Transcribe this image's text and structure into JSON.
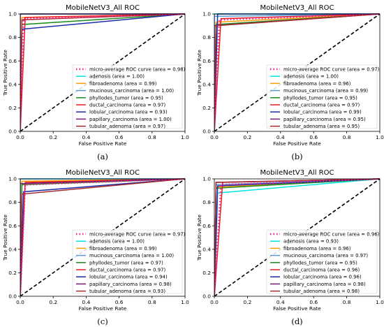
{
  "chart_data": [
    {
      "type": "line",
      "title": "MobileNetV3_All ROC",
      "xlabel": "False Positive Rate",
      "ylabel": "True Positive Rate",
      "xlim": [
        0,
        1
      ],
      "ylim": [
        0,
        1
      ],
      "xticks": [
        "0.0",
        "0.2",
        "0.4",
        "0.6",
        "0.8",
        "1.0"
      ],
      "yticks": [
        "0.0",
        "0.2",
        "0.4",
        "0.6",
        "0.8",
        "1.0"
      ],
      "legend_position": "lower-right",
      "caption": "(a)",
      "series": [
        {
          "name": "micro-average ROC curve (area = 0.98)",
          "color": "#ff1493",
          "dashed": true,
          "x": [
            0,
            0.02,
            1
          ],
          "y": [
            0,
            0.96,
            1
          ]
        },
        {
          "name": "adenosis (area = 1.00)",
          "color": "#00e5e5",
          "x": [
            0,
            0.0,
            1
          ],
          "y": [
            0,
            1.0,
            1
          ]
        },
        {
          "name": "fibroadenoma (area = 0.99)",
          "color": "#ff9900",
          "x": [
            0,
            0.01,
            1
          ],
          "y": [
            0,
            0.97,
            1
          ]
        },
        {
          "name": "mucinous_carcinoma (area = 1.00)",
          "color": "#5a9bd5",
          "x": [
            0,
            0.0,
            1
          ],
          "y": [
            0,
            1.0,
            1
          ]
        },
        {
          "name": "phyllodes_tumor (area = 0.95)",
          "color": "#1a8a1a",
          "x": [
            0,
            0.01,
            1
          ],
          "y": [
            0,
            0.91,
            1
          ]
        },
        {
          "name": "ductal_carcinoma (area = 0.97)",
          "color": "#e81c1c",
          "x": [
            0,
            0.03,
            1
          ],
          "y": [
            0,
            0.97,
            1
          ]
        },
        {
          "name": "lobular_carcinoma (area = 0.93)",
          "color": "#1a2aa8",
          "x": [
            0,
            0.01,
            1
          ],
          "y": [
            0,
            0.87,
            1
          ]
        },
        {
          "name": "papillary_carcinoma (area = 1.00)",
          "color": "#7a1a7a",
          "x": [
            0,
            0.0,
            1
          ],
          "y": [
            0,
            1.0,
            1
          ]
        },
        {
          "name": "tubular_adenoma (area = 0.97)",
          "color": "#a52a2a",
          "x": [
            0,
            0.01,
            1
          ],
          "y": [
            0,
            0.95,
            1
          ]
        }
      ]
    },
    {
      "type": "line",
      "title": "MobileNetV3_All ROC",
      "xlabel": "False Positive Rate",
      "ylabel": "True Positive Rate",
      "xlim": [
        0,
        1
      ],
      "ylim": [
        0,
        1
      ],
      "xticks": [
        "0.0",
        "0.2",
        "0.4",
        "0.6",
        "0.8",
        "1.0"
      ],
      "yticks": [
        "0.0",
        "0.2",
        "0.4",
        "0.6",
        "0.8",
        "1.0"
      ],
      "legend_position": "lower-right",
      "caption": "(b)",
      "series": [
        {
          "name": "micro-average ROC curve (area = 0.97)",
          "color": "#ff1493",
          "dashed": true,
          "x": [
            0,
            0.03,
            1
          ],
          "y": [
            0,
            0.95,
            1
          ]
        },
        {
          "name": "adenosis (area = 1.00)",
          "color": "#00e5e5",
          "x": [
            0,
            0.0,
            1
          ],
          "y": [
            0,
            1.0,
            1
          ]
        },
        {
          "name": "fibroadenoma (area = 0.96)",
          "color": "#ff9900",
          "x": [
            0,
            0.01,
            1
          ],
          "y": [
            0,
            0.93,
            1
          ]
        },
        {
          "name": "mucinous_carcinoma (area = 0.99)",
          "color": "#5a9bd5",
          "x": [
            0,
            0.0,
            1
          ],
          "y": [
            0,
            0.98,
            1
          ]
        },
        {
          "name": "phyllodes_tumor (area = 0.95)",
          "color": "#1a8a1a",
          "x": [
            0,
            0.01,
            1
          ],
          "y": [
            0,
            0.91,
            1
          ]
        },
        {
          "name": "ductal_carcinoma (area = 0.97)",
          "color": "#e81c1c",
          "x": [
            0,
            0.04,
            1
          ],
          "y": [
            0,
            0.96,
            1
          ]
        },
        {
          "name": "lobular_carcinoma (area = 0.99)",
          "color": "#1a2aa8",
          "x": [
            0,
            0.02,
            1
          ],
          "y": [
            0,
            1.0,
            1
          ]
        },
        {
          "name": "papillary_carcinoma (area = 0.95)",
          "color": "#7a1a7a",
          "x": [
            0,
            0.0,
            1
          ],
          "y": [
            0,
            0.9,
            1
          ]
        },
        {
          "name": "tubular_adenoma (area = 0.95)",
          "color": "#a52a2a",
          "x": [
            0,
            0.01,
            1
          ],
          "y": [
            0,
            0.9,
            1
          ]
        }
      ]
    },
    {
      "type": "line",
      "title": "MobileNetV3_All ROC",
      "xlabel": "False Positive Rate",
      "ylabel": "True Positive Rate",
      "xlim": [
        0,
        1
      ],
      "ylim": [
        0,
        1
      ],
      "xticks": [
        "0.0",
        "0.2",
        "0.4",
        "0.6",
        "0.8",
        "1.0"
      ],
      "yticks": [
        "0.0",
        "0.2",
        "0.4",
        "0.6",
        "0.8",
        "1.0"
      ],
      "legend_position": "lower-right",
      "caption": "(c)",
      "series": [
        {
          "name": "micro-average ROC curve (area = 0.97)",
          "color": "#ff1493",
          "dashed": true,
          "x": [
            0,
            0.03,
            1
          ],
          "y": [
            0,
            0.95,
            1
          ]
        },
        {
          "name": "adenosis (area = 1.00)",
          "color": "#00e5e5",
          "x": [
            0,
            0.0,
            1
          ],
          "y": [
            0,
            1.0,
            1
          ]
        },
        {
          "name": "fibroadenoma (area = 0.99)",
          "color": "#ff9900",
          "x": [
            0,
            0.01,
            1
          ],
          "y": [
            0,
            0.98,
            1
          ]
        },
        {
          "name": "mucinous_carcinoma (area = 1.00)",
          "color": "#5a9bd5",
          "x": [
            0,
            0.0,
            1
          ],
          "y": [
            0,
            1.0,
            1
          ]
        },
        {
          "name": "phyllodes_tumor (area = 0.97)",
          "color": "#1a8a1a",
          "x": [
            0,
            0.01,
            1
          ],
          "y": [
            0,
            0.95,
            1
          ]
        },
        {
          "name": "ductal_carcinoma (area = 0.97)",
          "color": "#e81c1c",
          "x": [
            0,
            0.03,
            1
          ],
          "y": [
            0,
            0.97,
            1
          ]
        },
        {
          "name": "lobular_carcinoma (area = 0.94)",
          "color": "#1a2aa8",
          "x": [
            0,
            0.02,
            1
          ],
          "y": [
            0,
            0.89,
            1
          ]
        },
        {
          "name": "papillary_carcinoma (area = 0.98)",
          "color": "#7a1a7a",
          "x": [
            0,
            0.0,
            1
          ],
          "y": [
            0,
            0.96,
            1
          ]
        },
        {
          "name": "tubular_adenoma (area = 0.93)",
          "color": "#a52a2a",
          "x": [
            0,
            0.01,
            1
          ],
          "y": [
            0,
            0.87,
            1
          ]
        }
      ]
    },
    {
      "type": "line",
      "title": "MobileNetV3_All ROC",
      "xlabel": "False Positive Rate",
      "ylabel": "True Positive Rate",
      "xlim": [
        0,
        1
      ],
      "ylim": [
        0,
        1
      ],
      "xticks": [
        "0.0",
        "0.2",
        "0.4",
        "0.6",
        "0.8",
        "1.0"
      ],
      "yticks": [
        "0.0",
        "0.2",
        "0.4",
        "0.6",
        "0.8",
        "1.0"
      ],
      "legend_position": "lower-right",
      "caption": "(d)",
      "series": [
        {
          "name": "micro-average ROC curve (area = 0.96)",
          "color": "#ff1493",
          "dashed": true,
          "x": [
            0,
            0.04,
            1
          ],
          "y": [
            0,
            0.95,
            1
          ]
        },
        {
          "name": "adenosis (area = 0.93)",
          "color": "#00e5e5",
          "x": [
            0,
            0.02,
            1
          ],
          "y": [
            0,
            0.88,
            1
          ]
        },
        {
          "name": "fibroadenoma (area = 0.96)",
          "color": "#ff9900",
          "x": [
            0,
            0.01,
            1
          ],
          "y": [
            0,
            0.93,
            1
          ]
        },
        {
          "name": "mucinous_carcinoma (area = 0.97)",
          "color": "#5a9bd5",
          "x": [
            0,
            0.01,
            1
          ],
          "y": [
            0,
            0.95,
            1
          ]
        },
        {
          "name": "phyllodes_tumor (area = 0.95)",
          "color": "#1a8a1a",
          "x": [
            0,
            0.01,
            1
          ],
          "y": [
            0,
            0.92,
            1
          ]
        },
        {
          "name": "ductal_carcinoma (area = 0.96)",
          "color": "#e81c1c",
          "x": [
            0,
            0.05,
            1
          ],
          "y": [
            0,
            0.97,
            1
          ]
        },
        {
          "name": "lobular_carcinoma (area = 0.96)",
          "color": "#1a2aa8",
          "x": [
            0,
            0.02,
            1
          ],
          "y": [
            0,
            0.94,
            1
          ]
        },
        {
          "name": "papillary_carcinoma (area = 0.98)",
          "color": "#7a1a7a",
          "x": [
            0,
            0.01,
            1
          ],
          "y": [
            0,
            0.97,
            1
          ]
        },
        {
          "name": "tubular_adenoma (area = 0.98)",
          "color": "#a52a2a",
          "x": [
            0,
            0.01,
            1
          ],
          "y": [
            0,
            0.97,
            1
          ]
        }
      ]
    }
  ]
}
